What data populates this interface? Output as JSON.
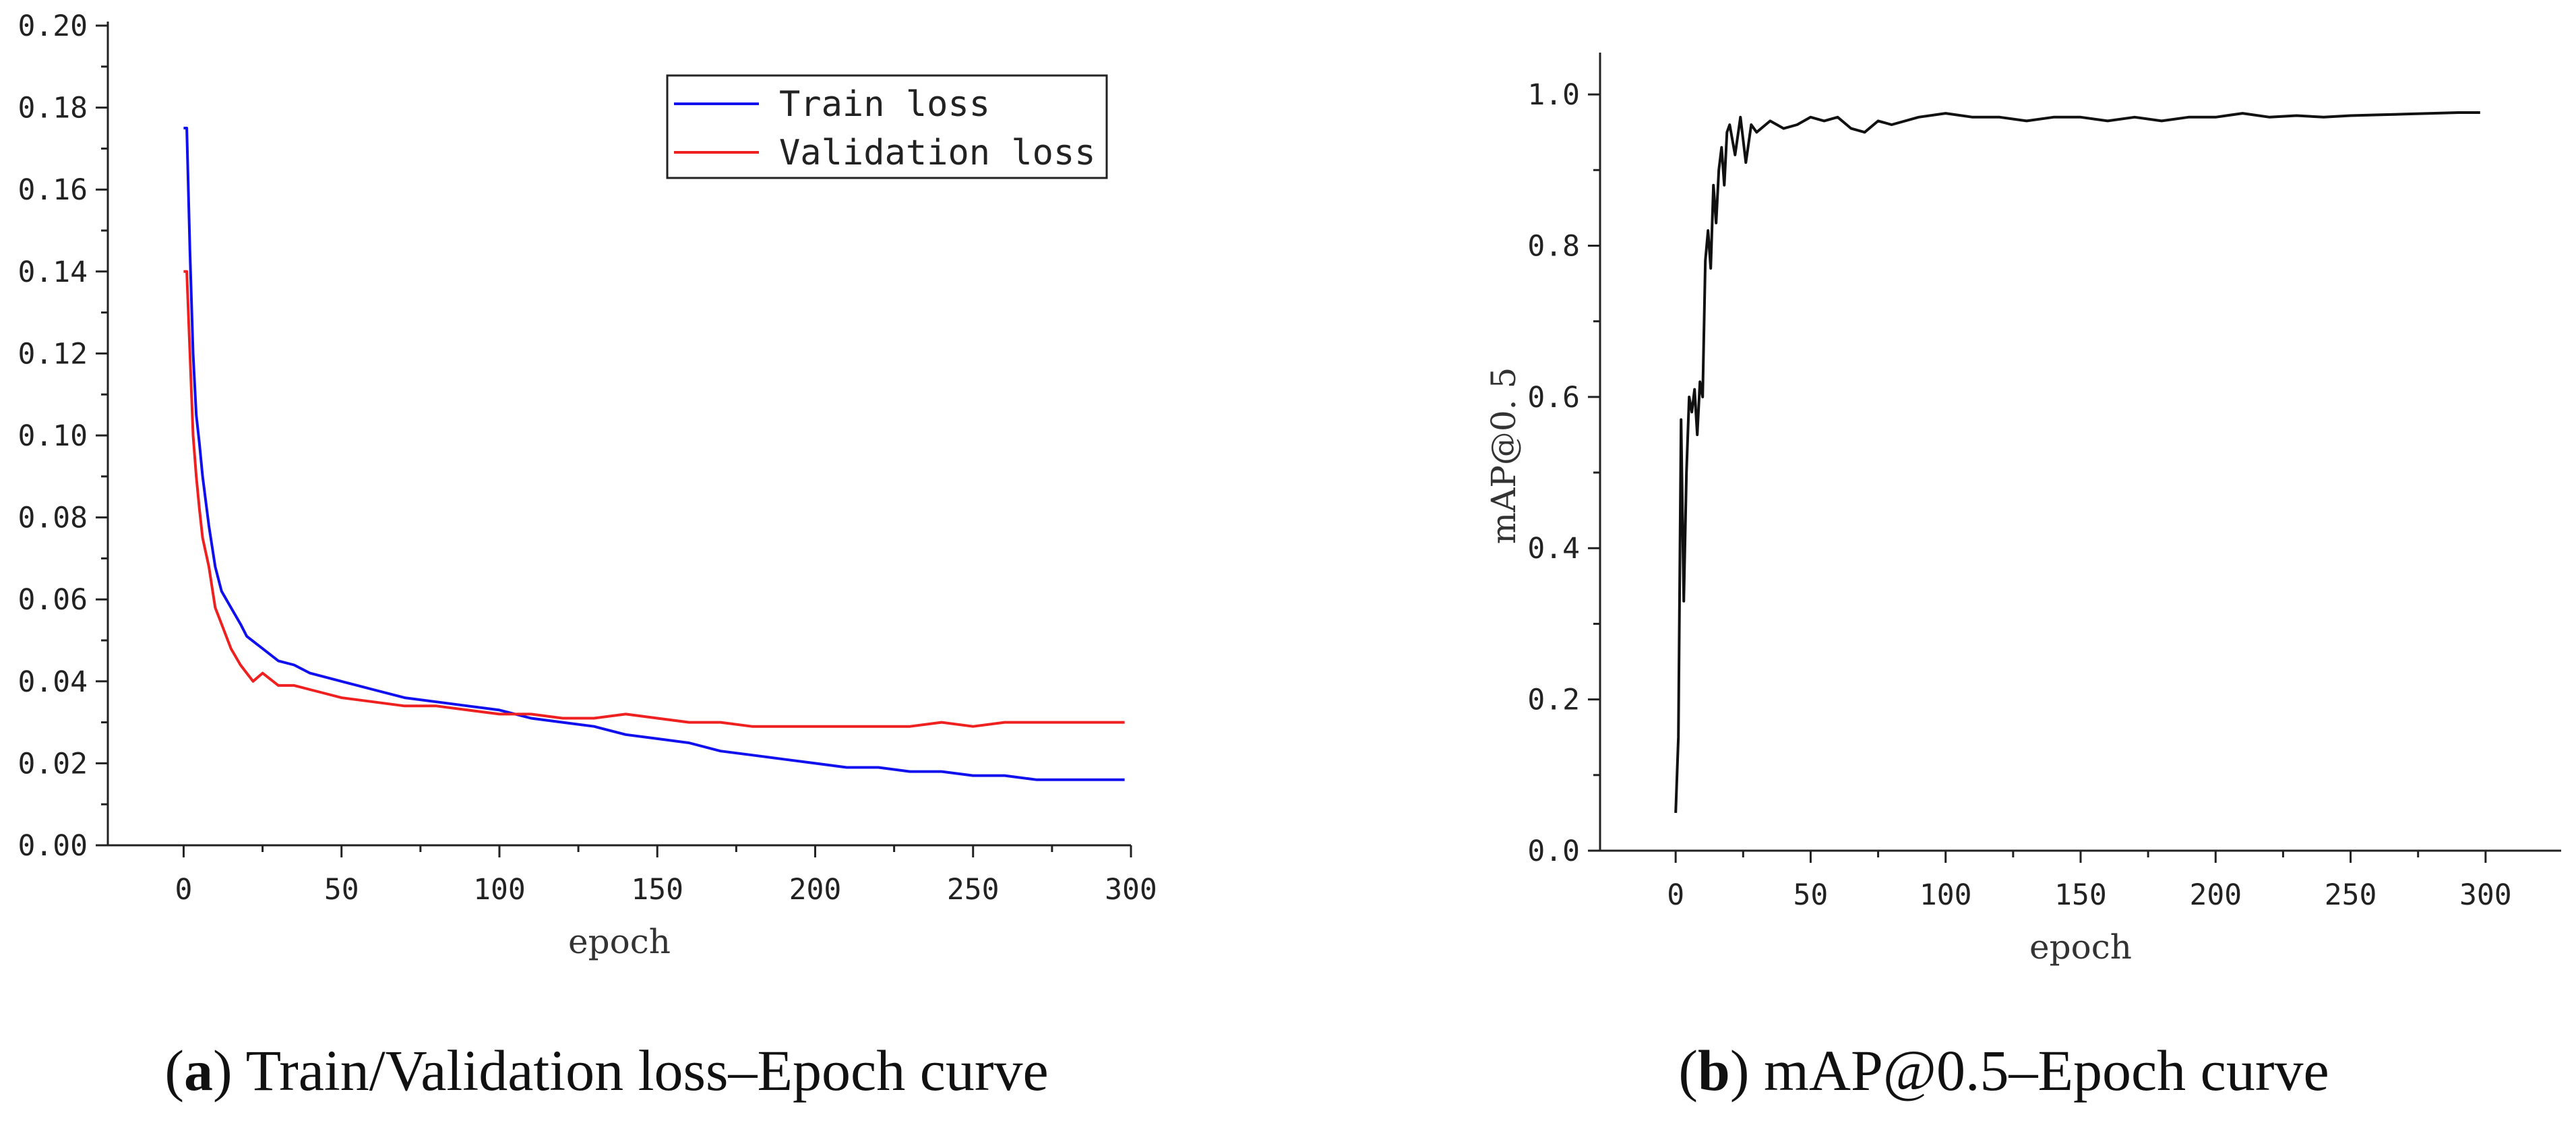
{
  "chart_data": [
    {
      "id": "a",
      "type": "line",
      "caption_letter": "a",
      "caption_text": "Train/Validation loss–Epoch curve",
      "xlabel": "epoch",
      "ylabel": "",
      "xlim": [
        -24,
        300
      ],
      "ylim": [
        0,
        0.2
      ],
      "xticks": [
        0,
        50,
        100,
        150,
        200,
        250,
        300
      ],
      "yticks": [
        0.0,
        0.02,
        0.04,
        0.06,
        0.08,
        0.1,
        0.12,
        0.14,
        0.16,
        0.18,
        0.2
      ],
      "ytick_labels": [
        "0.00",
        "0.02",
        "0.04",
        "0.06",
        "0.08",
        "0.10",
        "0.12",
        "0.14",
        "0.16",
        "0.18",
        "0.20"
      ],
      "legend_position": "top-right",
      "series": [
        {
          "name": "Train loss",
          "color": "#1010ee",
          "x": [
            0,
            1,
            2,
            3,
            4,
            5,
            6,
            8,
            10,
            12,
            15,
            18,
            20,
            25,
            30,
            35,
            40,
            45,
            50,
            60,
            70,
            80,
            90,
            100,
            110,
            120,
            130,
            140,
            150,
            160,
            170,
            180,
            190,
            200,
            210,
            220,
            230,
            240,
            250,
            260,
            270,
            280,
            290,
            298
          ],
          "y": [
            0.175,
            0.175,
            0.145,
            0.12,
            0.105,
            0.098,
            0.09,
            0.078,
            0.068,
            0.062,
            0.058,
            0.054,
            0.051,
            0.048,
            0.045,
            0.044,
            0.042,
            0.041,
            0.04,
            0.038,
            0.036,
            0.035,
            0.034,
            0.033,
            0.031,
            0.03,
            0.029,
            0.027,
            0.026,
            0.025,
            0.023,
            0.022,
            0.021,
            0.02,
            0.019,
            0.019,
            0.018,
            0.018,
            0.017,
            0.017,
            0.016,
            0.016,
            0.016,
            0.016
          ]
        },
        {
          "name": "Validation loss",
          "color": "#ee2020",
          "x": [
            0,
            1,
            2,
            3,
            4,
            5,
            6,
            8,
            10,
            12,
            15,
            18,
            20,
            22,
            25,
            30,
            35,
            40,
            45,
            50,
            60,
            70,
            80,
            90,
            100,
            110,
            120,
            130,
            140,
            150,
            160,
            170,
            180,
            190,
            200,
            210,
            220,
            230,
            240,
            250,
            260,
            270,
            280,
            290,
            298
          ],
          "y": [
            0.14,
            0.14,
            0.12,
            0.1,
            0.09,
            0.082,
            0.075,
            0.068,
            0.058,
            0.054,
            0.048,
            0.044,
            0.042,
            0.04,
            0.042,
            0.039,
            0.039,
            0.038,
            0.037,
            0.036,
            0.035,
            0.034,
            0.034,
            0.033,
            0.032,
            0.032,
            0.031,
            0.031,
            0.032,
            0.031,
            0.03,
            0.03,
            0.029,
            0.029,
            0.029,
            0.029,
            0.029,
            0.029,
            0.03,
            0.029,
            0.03,
            0.03,
            0.03,
            0.03,
            0.03
          ]
        }
      ]
    },
    {
      "id": "b",
      "type": "line",
      "caption_letter": "b",
      "caption_text": "mAP@0.5–Epoch curve",
      "xlabel": "epoch",
      "ylabel": "mAP@0. 5",
      "xlim": [
        -28,
        328
      ],
      "ylim": [
        0,
        1.05
      ],
      "xticks": [
        0,
        50,
        100,
        150,
        200,
        250,
        300
      ],
      "yticks": [
        0.0,
        0.2,
        0.4,
        0.6,
        0.8,
        1.0
      ],
      "ytick_labels": [
        "0.0",
        "0.2",
        "0.4",
        "0.6",
        "0.8",
        "1.0"
      ],
      "series": [
        {
          "name": "mAP@0.5",
          "color": "#111111",
          "x": [
            0,
            1,
            2,
            3,
            4,
            5,
            6,
            7,
            8,
            9,
            10,
            11,
            12,
            13,
            14,
            15,
            16,
            17,
            18,
            19,
            20,
            22,
            24,
            26,
            28,
            30,
            35,
            40,
            45,
            50,
            55,
            60,
            65,
            70,
            75,
            80,
            90,
            100,
            110,
            120,
            130,
            140,
            150,
            160,
            170,
            180,
            190,
            200,
            210,
            220,
            230,
            240,
            250,
            260,
            270,
            280,
            290,
            298
          ],
          "y": [
            0.05,
            0.15,
            0.57,
            0.33,
            0.5,
            0.6,
            0.58,
            0.61,
            0.55,
            0.62,
            0.6,
            0.78,
            0.82,
            0.77,
            0.88,
            0.83,
            0.9,
            0.93,
            0.88,
            0.95,
            0.96,
            0.92,
            0.97,
            0.91,
            0.96,
            0.95,
            0.965,
            0.955,
            0.96,
            0.97,
            0.965,
            0.97,
            0.955,
            0.95,
            0.965,
            0.96,
            0.97,
            0.975,
            0.97,
            0.97,
            0.965,
            0.97,
            0.97,
            0.965,
            0.97,
            0.965,
            0.97,
            0.97,
            0.975,
            0.97,
            0.972,
            0.97,
            0.972,
            0.973,
            0.974,
            0.975,
            0.976,
            0.976
          ]
        }
      ]
    }
  ]
}
